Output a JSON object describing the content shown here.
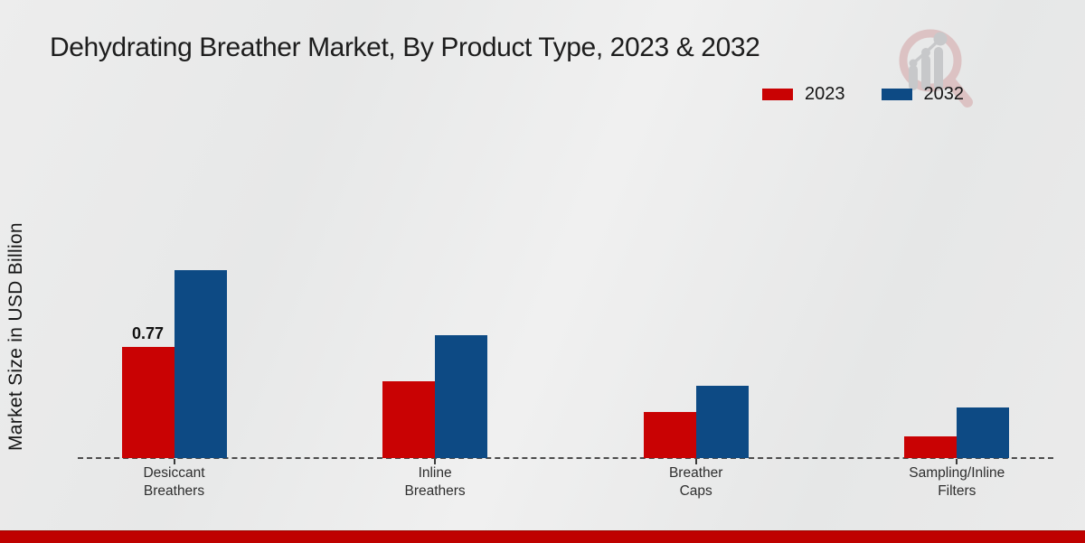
{
  "page": {
    "title": "Dehydrating Breather Market, By Product Type, 2023 & 2032"
  },
  "colors": {
    "series_2023_red": "#c90203",
    "series_2032_blue": "#0d4a84",
    "footer_bar_red": "#bf0100",
    "baseline_gray": "#4c4c4c",
    "watermark_pink": "#dcc2c3",
    "watermark_gray": "#c7c8ca"
  },
  "legend": {
    "items": [
      {
        "label": "2023",
        "color": "#c90203"
      },
      {
        "label": "2032",
        "color": "#0d4a84"
      }
    ]
  },
  "chart_data": {
    "type": "bar",
    "title": "Dehydrating Breather Market, By Product Type, 2023 & 2032",
    "xlabel": "",
    "ylabel": "Market Size in USD Billion",
    "categories": [
      "Desiccant Breathers",
      "Inline Breathers",
      "Breather Caps",
      "Sampling/Inline Filters"
    ],
    "category_label_lines": [
      [
        "Desiccant",
        "Breathers"
      ],
      [
        "Inline",
        "Breathers"
      ],
      [
        "Breather",
        "Caps"
      ],
      [
        "Sampling/Inline",
        "Filters"
      ]
    ],
    "series": [
      {
        "name": "2023",
        "color": "#c90203",
        "values": [
          0.77,
          0.53,
          0.32,
          0.15
        ]
      },
      {
        "name": "2032",
        "color": "#0d4a84",
        "values": [
          1.3,
          0.85,
          0.5,
          0.35
        ]
      }
    ],
    "data_labels": [
      {
        "series_index": 0,
        "category_index": 0,
        "text": "0.77"
      }
    ],
    "ylim": [
      0,
      1.45
    ],
    "grid": false,
    "legend_position": "top-right",
    "baseline_style": "dashed"
  }
}
